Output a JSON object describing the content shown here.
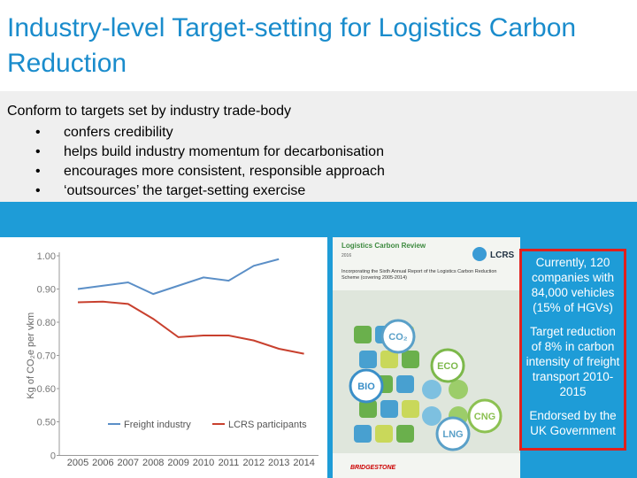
{
  "header": {
    "title": "Industry-level Target-setting for Logistics Carbon Reduction"
  },
  "intro": {
    "lead": "Conform to targets set by industry trade-body",
    "bullets": [
      "confers credibility",
      "helps build industry momentum for decarbonisation",
      "encourages more consistent, responsible approach",
      "‘outsources’ the target-setting exercise"
    ]
  },
  "chart_data": {
    "type": "line",
    "y_label": "Kg of CO₂e per vkm",
    "categories": [
      "2005",
      "2006",
      "2007",
      "2008",
      "2009",
      "2010",
      "2011",
      "2012",
      "2013",
      "2014"
    ],
    "series": [
      {
        "name": "Freight industry",
        "color": "#5b8fc7",
        "values": [
          0.9,
          0.91,
          0.92,
          0.885,
          0.91,
          0.935,
          0.925,
          0.97,
          0.99,
          null
        ]
      },
      {
        "name": "LCRS participants",
        "color": "#c8402e",
        "values": [
          0.86,
          0.862,
          0.855,
          0.81,
          0.755,
          0.76,
          0.76,
          0.745,
          0.72,
          0.705
        ]
      }
    ],
    "ylim": [
      0,
      1.0
    ],
    "yticks": [
      0,
      {
        "value": 0.5,
        "label": "0.50"
      },
      {
        "value": 0.6,
        "label": "0.60"
      },
      {
        "value": 0.7,
        "label": "0.70"
      },
      {
        "value": 0.8,
        "label": "0.80"
      },
      {
        "value": 0.9,
        "label": "0.90"
      },
      {
        "value": 1.0,
        "label": "1.00"
      }
    ],
    "legend": "bottom"
  },
  "cover": {
    "title": "Logistics Carbon Review",
    "year": "2016",
    "logo": "LCRS",
    "subtitle": "Incorporating the Sixth Annual Report of the Logistics Carbon Reduction Scheme (covering 2005-2014)",
    "icons": [
      "CO₂",
      "ECO",
      "BIO",
      "CNG",
      "LNG"
    ],
    "sponsor": "BRIDGESTONE"
  },
  "callouts": [
    "Currently, 120 companies with 84,000 vehicles (15% of HGVs)",
    "Target reduction of 8% in carbon intensity of freight transport 2010-2015",
    "Endorsed by the UK Government"
  ]
}
